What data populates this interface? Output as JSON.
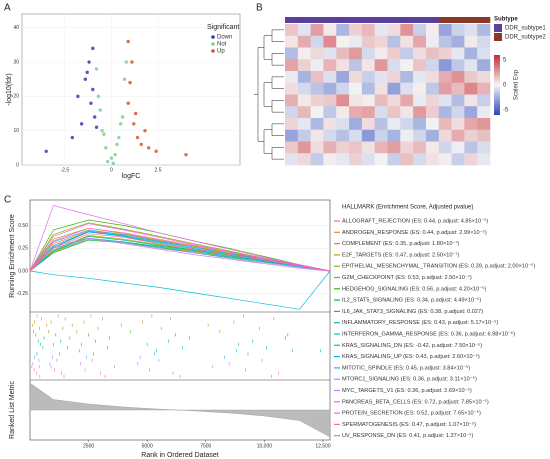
{
  "chart_data": [
    {
      "type": "scatter",
      "panel": "A",
      "xlabel": "logFC",
      "ylabel": "-log10(fdr)",
      "legend_title": "Significant",
      "grid": true,
      "xlim": [
        -4.8,
        6.9
      ],
      "ylim": [
        0,
        44
      ],
      "xticks": [
        -2.5,
        0,
        2.5
      ],
      "yticks": [
        0,
        10,
        20,
        30,
        40
      ],
      "series": [
        {
          "name": "Down",
          "color": "#3b3bb0",
          "x": [
            -1.2,
            -1.0,
            -1.4,
            -0.9,
            -1.1,
            -1.6,
            -0.8,
            -1.3,
            -1.0,
            -2.1,
            -3.5,
            -1.8
          ],
          "values": [
            30,
            22,
            25,
            14,
            18,
            12,
            11,
            27,
            34,
            8,
            4,
            20
          ]
        },
        {
          "name": "Not",
          "color": "#7fcf8f",
          "x": [
            -0.5,
            -0.3,
            0,
            0.2,
            0.4,
            0.6,
            -0.7,
            0.7,
            -0.2,
            0.1,
            0.5,
            -0.6,
            0.3,
            -0.4,
            0.8,
            -0.8
          ],
          "values": [
            10,
            5,
            2,
            3,
            8,
            14,
            20,
            25,
            1,
            0.5,
            12,
            16,
            6,
            9,
            30,
            28
          ]
        },
        {
          "name": "Up",
          "color": "#d9542c",
          "x": [
            0.9,
            1.0,
            1.2,
            1.4,
            1.1,
            1.6,
            2.0,
            2.4,
            1.3,
            0.9,
            4.0,
            1.8
          ],
          "values": [
            18,
            24,
            12,
            8,
            30,
            6,
            5,
            4,
            15,
            36,
            3,
            10
          ]
        }
      ]
    },
    {
      "type": "heatmap",
      "panel": "B",
      "annotation_title": "Subtype",
      "groups": [
        {
          "name": "DDR_subtype1",
          "color": "#5b3f9e"
        },
        {
          "name": "DDR_subtype2",
          "color": "#8a3a22"
        }
      ],
      "column_groups": [
        0,
        0,
        0,
        0,
        0,
        0,
        0,
        0,
        0,
        0,
        0,
        0,
        1,
        1,
        1,
        1
      ],
      "colorbar_title": "Scaled Exp",
      "colorbar_lim": [
        -6,
        6
      ],
      "colorbar_ticks": [
        5,
        0,
        -5
      ],
      "values": [
        [
          1.2,
          -0.5,
          2.1,
          0.3,
          -1.8,
          0.9,
          1.5,
          -0.4,
          0.6,
          2.4,
          -1.1,
          0.2,
          -2.3,
          -1.0,
          -0.6,
          -1.7
        ],
        [
          0.4,
          1.8,
          -0.9,
          2.6,
          0.1,
          -0.3,
          1.1,
          0.8,
          -1.5,
          0.5,
          1.9,
          -0.2,
          -1.4,
          -2.0,
          0.3,
          -0.8
        ],
        [
          -1.6,
          0.2,
          0.7,
          -0.5,
          1.4,
          2.2,
          -0.8,
          0.3,
          1.0,
          -1.2,
          0.6,
          1.3,
          0.9,
          -0.4,
          -1.9,
          -0.6
        ],
        [
          2.0,
          0.9,
          -0.2,
          1.6,
          0.5,
          -1.4,
          0.4,
          2.3,
          -0.7,
          0.1,
          1.2,
          -0.9,
          -2.6,
          -1.3,
          -0.5,
          -2.1
        ],
        [
          -0.3,
          -1.9,
          1.3,
          -0.6,
          -2.2,
          0.7,
          -1.1,
          -0.5,
          0.8,
          -1.7,
          -0.4,
          0.6,
          1.8,
          2.4,
          1.1,
          0.7
        ],
        [
          0.6,
          -0.8,
          -1.4,
          -2.0,
          -0.9,
          -0.1,
          -1.6,
          0.5,
          -2.4,
          -0.6,
          0.2,
          -1.3,
          2.1,
          1.4,
          2.7,
          1.6
        ],
        [
          1.7,
          0.3,
          0.9,
          1.1,
          2.5,
          0.4,
          0.2,
          1.4,
          0.7,
          1.9,
          -0.3,
          0.8,
          -0.5,
          -1.6,
          0.4,
          -1.1
        ],
        [
          -0.9,
          1.5,
          0.1,
          -1.3,
          0.3,
          1.8,
          2.0,
          -0.7,
          1.2,
          0.4,
          2.2,
          1.0,
          -1.8,
          -0.9,
          -2.2,
          -0.3
        ],
        [
          0.8,
          -0.4,
          -1.7,
          0.5,
          -0.6,
          -2.1,
          0.6,
          -1.5,
          -0.3,
          -0.9,
          -1.8,
          -0.1,
          1.5,
          0.6,
          1.9,
          2.3
        ],
        [
          -2.3,
          -1.2,
          0.4,
          -0.8,
          -1.5,
          -0.7,
          -2.6,
          -1.0,
          -1.9,
          -0.2,
          -0.9,
          -2.0,
          0.7,
          1.8,
          0.9,
          1.3
        ],
        [
          1.1,
          2.3,
          0.6,
          1.7,
          0.9,
          1.2,
          0.5,
          1.6,
          2.1,
          0.8,
          1.4,
          0.3,
          -0.9,
          -0.2,
          -1.4,
          -0.7
        ],
        [
          -0.5,
          0.7,
          -1.2,
          0.2,
          -0.4,
          0.9,
          -0.6,
          0.1,
          -1.1,
          1.3,
          -0.8,
          0.5,
          0.2,
          -1.1,
          0.8,
          -0.4
        ]
      ]
    },
    {
      "type": "line",
      "panel": "C",
      "ylabel": "Running Enrichment Score",
      "metric_label": "Ranked List Metric",
      "xlabel": "Rank in Ordered Dataset",
      "legend_title": "HALLMARK (Enrichment Score, Adjusted pvalue)",
      "xlim": [
        0,
        12800
      ],
      "ylim": [
        -0.45,
        0.78
      ],
      "xticks": [
        2500,
        5000,
        7500,
        {
          "value": 10000,
          "label": "10,000"
        },
        {
          "value": 12500,
          "label": "12,500"
        }
      ],
      "yticks": [
        {
          "value": 0.5,
          "label": "0.50"
        },
        {
          "value": 0.25,
          "label": "0.25"
        },
        {
          "value": 0,
          "label": "0.00"
        },
        {
          "value": -0.25,
          "label": "-0.25"
        }
      ],
      "x": [
        0,
        1000,
        2500,
        4000,
        5500,
        7000,
        8500,
        10000,
        11500,
        12800
      ],
      "metric_ylim": [
        -1,
        1
      ],
      "metric": [
        0.9,
        0.35,
        0.2,
        0.1,
        0.03,
        -0.03,
        -0.1,
        -0.2,
        -0.35,
        -0.9
      ],
      "series": [
        {
          "name": "ALLOGRAFT_REJECTION (ES: 0.44, p.adjust: 4.85×10⁻⁵)",
          "color": "#F8766D",
          "values": [
            0,
            0.26,
            0.44,
            0.4,
            0.33,
            0.26,
            0.2,
            0.13,
            0.07,
            0
          ],
          "hits": [
            300,
            1200,
            2600,
            5200,
            9100
          ]
        },
        {
          "name": "ANDROGEN_RESPONSE (ES: 0.44, p.adjust: 2.99×10⁻⁵)",
          "color": "#EA8331",
          "values": [
            0,
            0.3,
            0.44,
            0.38,
            0.3,
            0.24,
            0.18,
            0.12,
            0.05,
            0
          ],
          "hits": [
            500,
            1500,
            3100,
            6000,
            10400
          ]
        },
        {
          "name": "COMPLEMENT (ES: 0.35, p.adjust: 1.80×10⁻⁷)",
          "color": "#D89000",
          "values": [
            0,
            0.21,
            0.35,
            0.32,
            0.26,
            0.21,
            0.16,
            0.11,
            0.05,
            0
          ],
          "hits": [
            200,
            900,
            2300,
            4800,
            8700
          ]
        },
        {
          "name": "E2F_TARGETS (ES: 0.47, p.adjust: 2.50×10⁻⁷)",
          "color": "#C09B00",
          "values": [
            0,
            0.35,
            0.47,
            0.41,
            0.34,
            0.27,
            0.2,
            0.13,
            0.06,
            0
          ],
          "hits": [
            100,
            700,
            1800,
            3900,
            7600
          ]
        },
        {
          "name": "EPITHELIAL_MESENCHYMAL_TRANSITION (ES: 0.39, p.adjust: 2.00×10⁻⁵)",
          "color": "#A3A500",
          "values": [
            0,
            0.23,
            0.39,
            0.35,
            0.29,
            0.23,
            0.18,
            0.12,
            0.06,
            0
          ],
          "hits": [
            400,
            1400,
            2900,
            5600,
            9800
          ]
        },
        {
          "name": "G2M_CHECKPOINT (ES: 0.53, p.adjust: 2.50×10⁻⁷)",
          "color": "#7CAE00",
          "values": [
            0,
            0.4,
            0.53,
            0.46,
            0.38,
            0.3,
            0.22,
            0.14,
            0.06,
            0
          ],
          "hits": [
            150,
            800,
            2000,
            4300,
            8100
          ]
        },
        {
          "name": "HEDGEHOG_SIGNALING (ES: 0.56, p.adjust: 4.20×10⁻⁵)",
          "color": "#39B600",
          "values": [
            0,
            0.45,
            0.56,
            0.5,
            0.42,
            0.33,
            0.25,
            0.16,
            0.07,
            0
          ],
          "hits": [
            250,
            1100,
            2500,
            6200,
            11000
          ]
        },
        {
          "name": "IL2_STAT5_SIGNALING (ES: 0.34, p.adjust: 4.49×10⁻⁵)",
          "color": "#00BB4E",
          "values": [
            0,
            0.2,
            0.34,
            0.31,
            0.26,
            0.2,
            0.15,
            0.1,
            0.05,
            0
          ],
          "hits": [
            600,
            1700,
            3400,
            6800,
            10900
          ]
        },
        {
          "name": "IL6_JAK_STAT3_SIGNALING (ES: 0.38, p.adjust: 0.027)",
          "color": "#00BF7D",
          "values": [
            0,
            0.22,
            0.38,
            0.34,
            0.28,
            0.23,
            0.17,
            0.11,
            0.05,
            0
          ],
          "hits": [
            350,
            1300,
            2800,
            5900,
            9500
          ]
        },
        {
          "name": "INFLAMMATORY_RESPONSE (ES: 0.43, p.adjust: 5.17×10⁻⁵)",
          "color": "#00C1A3",
          "values": [
            0,
            0.26,
            0.43,
            0.39,
            0.32,
            0.26,
            0.19,
            0.13,
            0.06,
            0
          ],
          "hits": [
            450,
            1000,
            2200,
            5000,
            8900
          ]
        },
        {
          "name": "INTERFERON_GAMMA_RESPONSE (ES: 0.36, p.adjust: 6.98×10⁻⁶)",
          "color": "#00BFC4",
          "values": [
            0,
            0.22,
            0.36,
            0.32,
            0.27,
            0.22,
            0.16,
            0.11,
            0.05,
            0
          ],
          "hits": [
            550,
            1600,
            3300,
            6500,
            10100
          ]
        },
        {
          "name": "KRAS_SIGNALING_DN (ES: -0.42, p.adjust: 7.50×10⁻⁵)",
          "color": "#00BAE0",
          "values": [
            0,
            -0.04,
            -0.08,
            -0.13,
            -0.18,
            -0.24,
            -0.3,
            -0.36,
            -0.42,
            0
          ],
          "hits": [
            2100,
            5400,
            8800,
            11200,
            12400
          ]
        },
        {
          "name": "KRAS_SIGNALING_UP (ES: 0.43, p.adjust: 2.60×10⁻⁵)",
          "color": "#00B0F6",
          "values": [
            0,
            0.28,
            0.43,
            0.38,
            0.31,
            0.25,
            0.18,
            0.12,
            0.05,
            0
          ],
          "hits": [
            300,
            1250,
            2700,
            5300,
            9300
          ]
        },
        {
          "name": "MITOTIC_SPINDLE (ES: 0.45, p.adjust: 3.84×10⁻⁵)",
          "color": "#35A2FF",
          "values": [
            0,
            0.32,
            0.45,
            0.4,
            0.33,
            0.26,
            0.19,
            0.12,
            0.05,
            0
          ],
          "hits": [
            200,
            950,
            2400,
            4700,
            8300
          ]
        },
        {
          "name": "MTORC1_SIGNALING (ES: 0.36, p.adjust: 3.11×10⁻⁵)",
          "color": "#9590FF",
          "values": [
            0,
            0.25,
            0.36,
            0.31,
            0.25,
            0.2,
            0.14,
            0.09,
            0.04,
            0
          ],
          "hits": [
            380,
            1150,
            2650,
            5500,
            9900
          ]
        },
        {
          "name": "MYC_TARGETS_V1 (ES: 0.36, p.adjust: 2.69×10⁻⁵)",
          "color": "#C77CFF",
          "values": [
            0,
            0.27,
            0.36,
            0.3,
            0.24,
            0.18,
            0.13,
            0.08,
            0.03,
            0
          ],
          "hits": [
            120,
            850,
            2150,
            4600,
            8500
          ]
        },
        {
          "name": "PANCREAS_BETA_CELLS (ES: 0.72, p.adjust: 7.85×10⁻⁵)",
          "color": "#E76BF3",
          "values": [
            0,
            0.72,
            0.62,
            0.52,
            0.42,
            0.33,
            0.24,
            0.15,
            0.07,
            0
          ],
          "hits": [
            80,
            400,
            900,
            3600,
            7800
          ]
        },
        {
          "name": "PROTEIN_SECRETION (ES: 0.52, p.adjust: 7.65×10⁻⁵)",
          "color": "#FA62DB",
          "values": [
            0,
            0.38,
            0.52,
            0.45,
            0.37,
            0.29,
            0.21,
            0.13,
            0.06,
            0
          ],
          "hits": [
            180,
            1050,
            2350,
            5100,
            9200
          ]
        },
        {
          "name": "SPERMATOGENESIS (ES: 0.47, p.adjust: 1.07×10⁻⁵)",
          "color": "#FF62BC",
          "values": [
            0,
            0.33,
            0.47,
            0.42,
            0.35,
            0.28,
            0.21,
            0.14,
            0.07,
            0
          ],
          "hits": [
            280,
            1350,
            3000,
            6100,
            10600
          ]
        },
        {
          "name": "UV_RESPONSE_DN (ES: 0.41, p.adjust: 1.37×10⁻⁵)",
          "color": "#FF6A98",
          "values": [
            0,
            0.25,
            0.41,
            0.37,
            0.3,
            0.24,
            0.18,
            0.12,
            0.06,
            0
          ],
          "hits": [
            420,
            1450,
            3200,
            6400,
            10300
          ]
        }
      ]
    }
  ]
}
